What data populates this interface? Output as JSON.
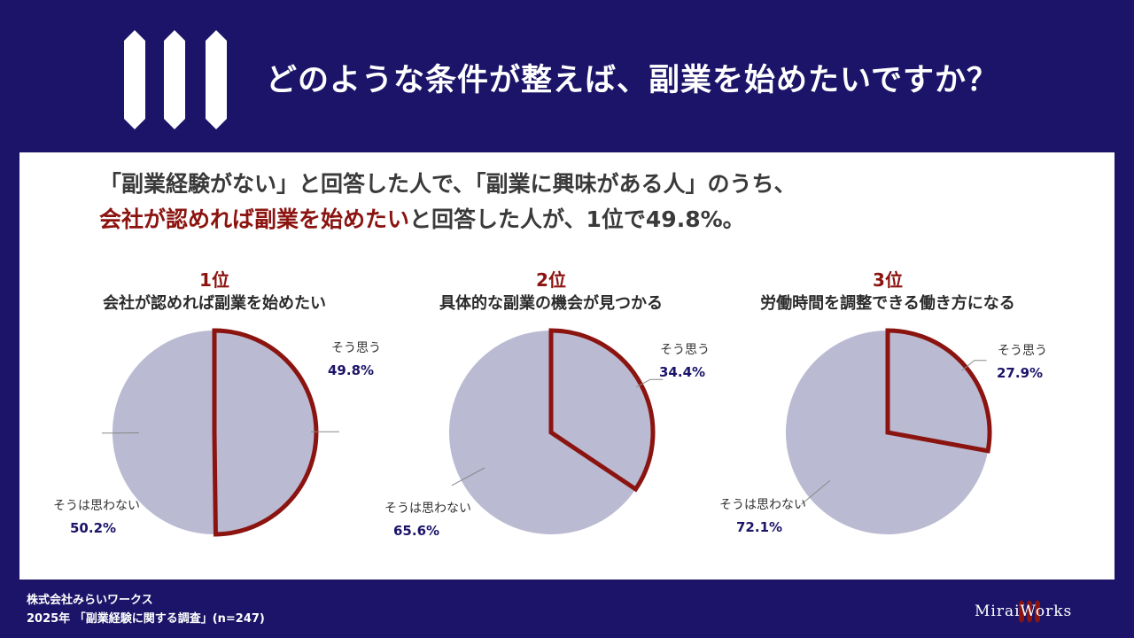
{
  "header": {
    "title": "どのような条件が整えば、副業を始めたいですか？"
  },
  "summary": {
    "line1": "「副業経験がない」と回答した人で、「副業に興味がある人」のうち、",
    "line2_highlight": "会社が認めれば副業を始めたい",
    "line2_rest": "と回答した人が、1位で49.8%。"
  },
  "chart_data": [
    {
      "type": "pie",
      "rank": "1位",
      "title": "会社が認めれば副業を始めたい",
      "slices": [
        {
          "label": "そう思う",
          "value": 49.8,
          "value_label": "49.8%",
          "highlight": true
        },
        {
          "label": "そうは思わない",
          "value": 50.2,
          "value_label": "50.2%",
          "highlight": false
        }
      ]
    },
    {
      "type": "pie",
      "rank": "2位",
      "title": "具体的な副業の機会が見つかる",
      "slices": [
        {
          "label": "そう思う",
          "value": 34.4,
          "value_label": "34.4%",
          "highlight": true
        },
        {
          "label": "そうは思わない",
          "value": 65.6,
          "value_label": "65.6%",
          "highlight": false
        }
      ]
    },
    {
      "type": "pie",
      "rank": "3位",
      "title": "労働時間を調整できる働き方になる",
      "slices": [
        {
          "label": "そう思う",
          "value": 27.9,
          "value_label": "27.9%",
          "highlight": true
        },
        {
          "label": "そうは思わない",
          "value": 72.1,
          "value_label": "72.1%",
          "highlight": false
        }
      ]
    }
  ],
  "colors": {
    "background": "#1b1468",
    "highlight_border": "#8b1410",
    "slice_fill": "#babad2",
    "accent_text": "#8b1410"
  },
  "footer": {
    "company": "株式会社みらいワークス",
    "survey": "2025年 「副業経験に関する調査」(n=247)"
  },
  "brand": {
    "name": "MiraiWorks"
  }
}
